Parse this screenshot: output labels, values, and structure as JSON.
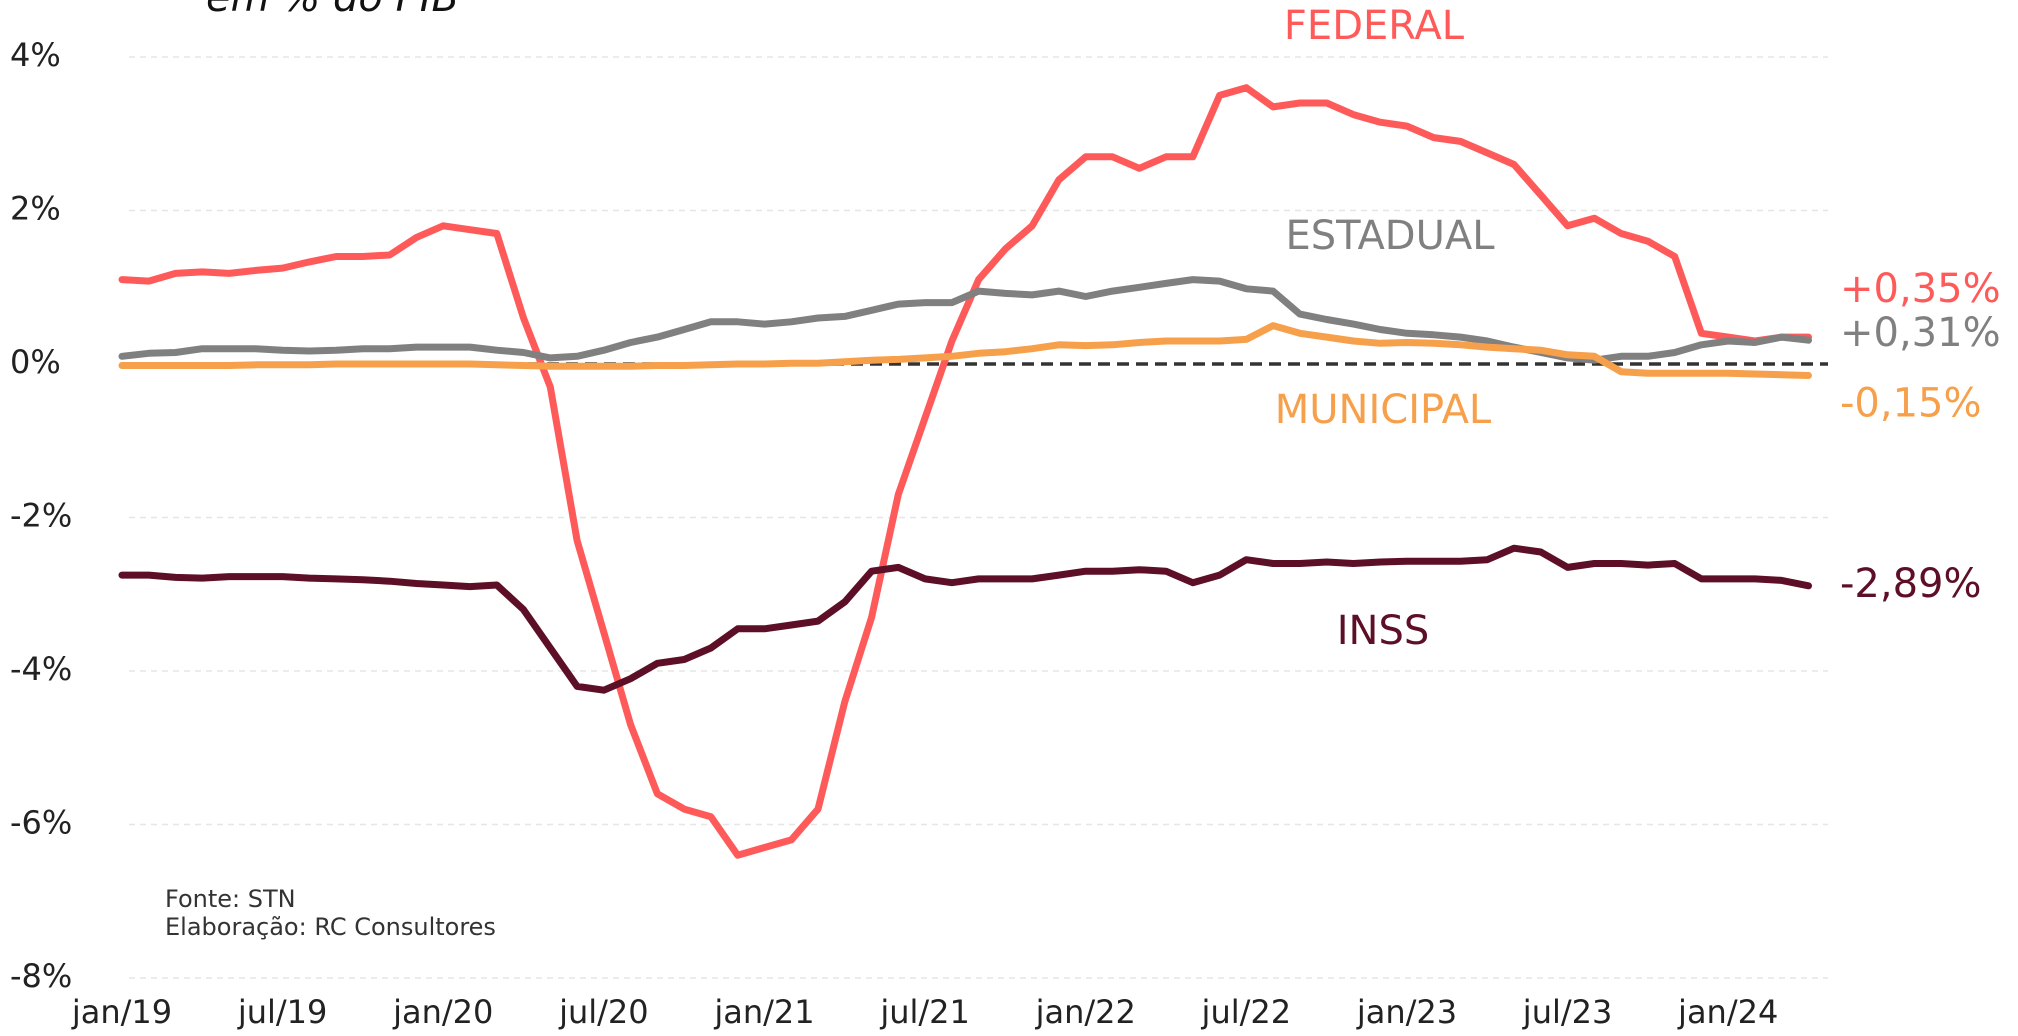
{
  "chart_data": {
    "type": "line",
    "subtitle": "em % do PIB",
    "source": "Fonte: STN",
    "credit": "Elaboração: RC Consultores",
    "categories": [
      "jan/19",
      null,
      null,
      null,
      null,
      null,
      "jul/19",
      null,
      null,
      null,
      null,
      null,
      "jan/20",
      null,
      null,
      null,
      null,
      null,
      "jul/20",
      null,
      null,
      null,
      null,
      null,
      "jan/21",
      null,
      null,
      null,
      null,
      null,
      "jul/21",
      null,
      null,
      null,
      null,
      null,
      "jan/22",
      null,
      null,
      null,
      null,
      null,
      "jul/22",
      null,
      null,
      null,
      null,
      null,
      "jan/23",
      null,
      null,
      null,
      null,
      null,
      "jul/23",
      null,
      null,
      null,
      null,
      null,
      "jan/24",
      null,
      null,
      null
    ],
    "ylim": [
      -8,
      4
    ],
    "yticks": [
      {
        "value": -8,
        "label": "-8%"
      },
      {
        "value": -6,
        "label": "-6%"
      },
      {
        "value": -4,
        "label": "-4%"
      },
      {
        "value": -2,
        "label": "-2%"
      },
      {
        "value": 0,
        "label": "0%"
      },
      {
        "value": 2,
        "label": "2%"
      },
      {
        "value": 4,
        "label": "4%"
      }
    ],
    "grid": true,
    "series": [
      {
        "name": "FEDERAL",
        "color": "#ff5a5a",
        "end_label": "+0,35%",
        "values": [
          1.1,
          1.08,
          1.18,
          1.2,
          1.18,
          1.22,
          1.25,
          1.33,
          1.4,
          1.4,
          1.42,
          1.65,
          1.8,
          1.75,
          1.7,
          0.6,
          -0.3,
          -2.3,
          -3.5,
          -4.7,
          -5.6,
          -5.8,
          -5.9,
          -6.4,
          -6.3,
          -6.2,
          -5.8,
          -4.4,
          -3.3,
          -1.7,
          -0.7,
          0.3,
          1.1,
          1.5,
          1.8,
          2.4,
          2.7,
          2.7,
          2.55,
          2.7,
          2.7,
          3.5,
          3.6,
          3.35,
          3.4,
          3.4,
          3.25,
          3.15,
          3.1,
          2.95,
          2.9,
          2.75,
          2.6,
          2.2,
          1.8,
          1.9,
          1.7,
          1.6,
          1.4,
          0.4,
          0.35,
          0.3,
          0.35,
          0.35
        ]
      },
      {
        "name": "ESTADUAL",
        "color": "#808080",
        "end_label": "+0,31%",
        "values": [
          0.1,
          0.14,
          0.15,
          0.2,
          0.2,
          0.2,
          0.18,
          0.17,
          0.18,
          0.2,
          0.2,
          0.22,
          0.22,
          0.22,
          0.18,
          0.15,
          0.08,
          0.1,
          0.18,
          0.28,
          0.35,
          0.45,
          0.55,
          0.55,
          0.52,
          0.55,
          0.6,
          0.62,
          0.7,
          0.78,
          0.8,
          0.8,
          0.95,
          0.92,
          0.9,
          0.95,
          0.88,
          0.95,
          1.0,
          1.05,
          1.1,
          1.08,
          0.98,
          0.95,
          0.65,
          0.58,
          0.52,
          0.45,
          0.4,
          0.38,
          0.35,
          0.3,
          0.22,
          0.15,
          0.08,
          0.05,
          0.1,
          0.1,
          0.15,
          0.25,
          0.3,
          0.28,
          0.35,
          0.31
        ]
      },
      {
        "name": "MUNICIPAL",
        "color": "#f7a04b",
        "end_label": "-0,15%",
        "values": [
          -0.02,
          -0.02,
          -0.02,
          -0.02,
          -0.02,
          -0.01,
          -0.01,
          -0.01,
          0.0,
          0.0,
          0.0,
          0.0,
          0.0,
          0.0,
          -0.01,
          -0.02,
          -0.03,
          -0.03,
          -0.03,
          -0.03,
          -0.02,
          -0.02,
          -0.01,
          0.0,
          0.0,
          0.01,
          0.01,
          0.03,
          0.05,
          0.06,
          0.08,
          0.1,
          0.14,
          0.16,
          0.2,
          0.25,
          0.24,
          0.25,
          0.28,
          0.3,
          0.3,
          0.3,
          0.32,
          0.5,
          0.4,
          0.35,
          0.3,
          0.27,
          0.28,
          0.27,
          0.25,
          0.22,
          0.2,
          0.18,
          0.12,
          0.1,
          -0.1,
          -0.12,
          -0.12,
          -0.12,
          -0.12,
          -0.13,
          -0.14,
          -0.15
        ]
      },
      {
        "name": "INSS",
        "color": "#5c0f26",
        "end_label": "-2,89%",
        "values": [
          -2.75,
          -2.75,
          -2.78,
          -2.79,
          -2.77,
          -2.77,
          -2.77,
          -2.79,
          -2.8,
          -2.81,
          -2.83,
          -2.86,
          -2.88,
          -2.9,
          -2.88,
          -3.2,
          -3.7,
          -4.2,
          -4.25,
          -4.1,
          -3.9,
          -3.85,
          -3.7,
          -3.45,
          -3.45,
          -3.4,
          -3.35,
          -3.1,
          -2.7,
          -2.65,
          -2.8,
          -2.85,
          -2.8,
          -2.8,
          -2.8,
          -2.75,
          -2.7,
          -2.7,
          -2.68,
          -2.7,
          -2.85,
          -2.75,
          -2.55,
          -2.6,
          -2.6,
          -2.58,
          -2.6,
          -2.58,
          -2.57,
          -2.57,
          -2.57,
          -2.55,
          -2.4,
          -2.45,
          -2.65,
          -2.6,
          -2.6,
          -2.62,
          -2.6,
          -2.8,
          -2.8,
          -2.8,
          -2.82,
          -2.89
        ]
      }
    ]
  }
}
